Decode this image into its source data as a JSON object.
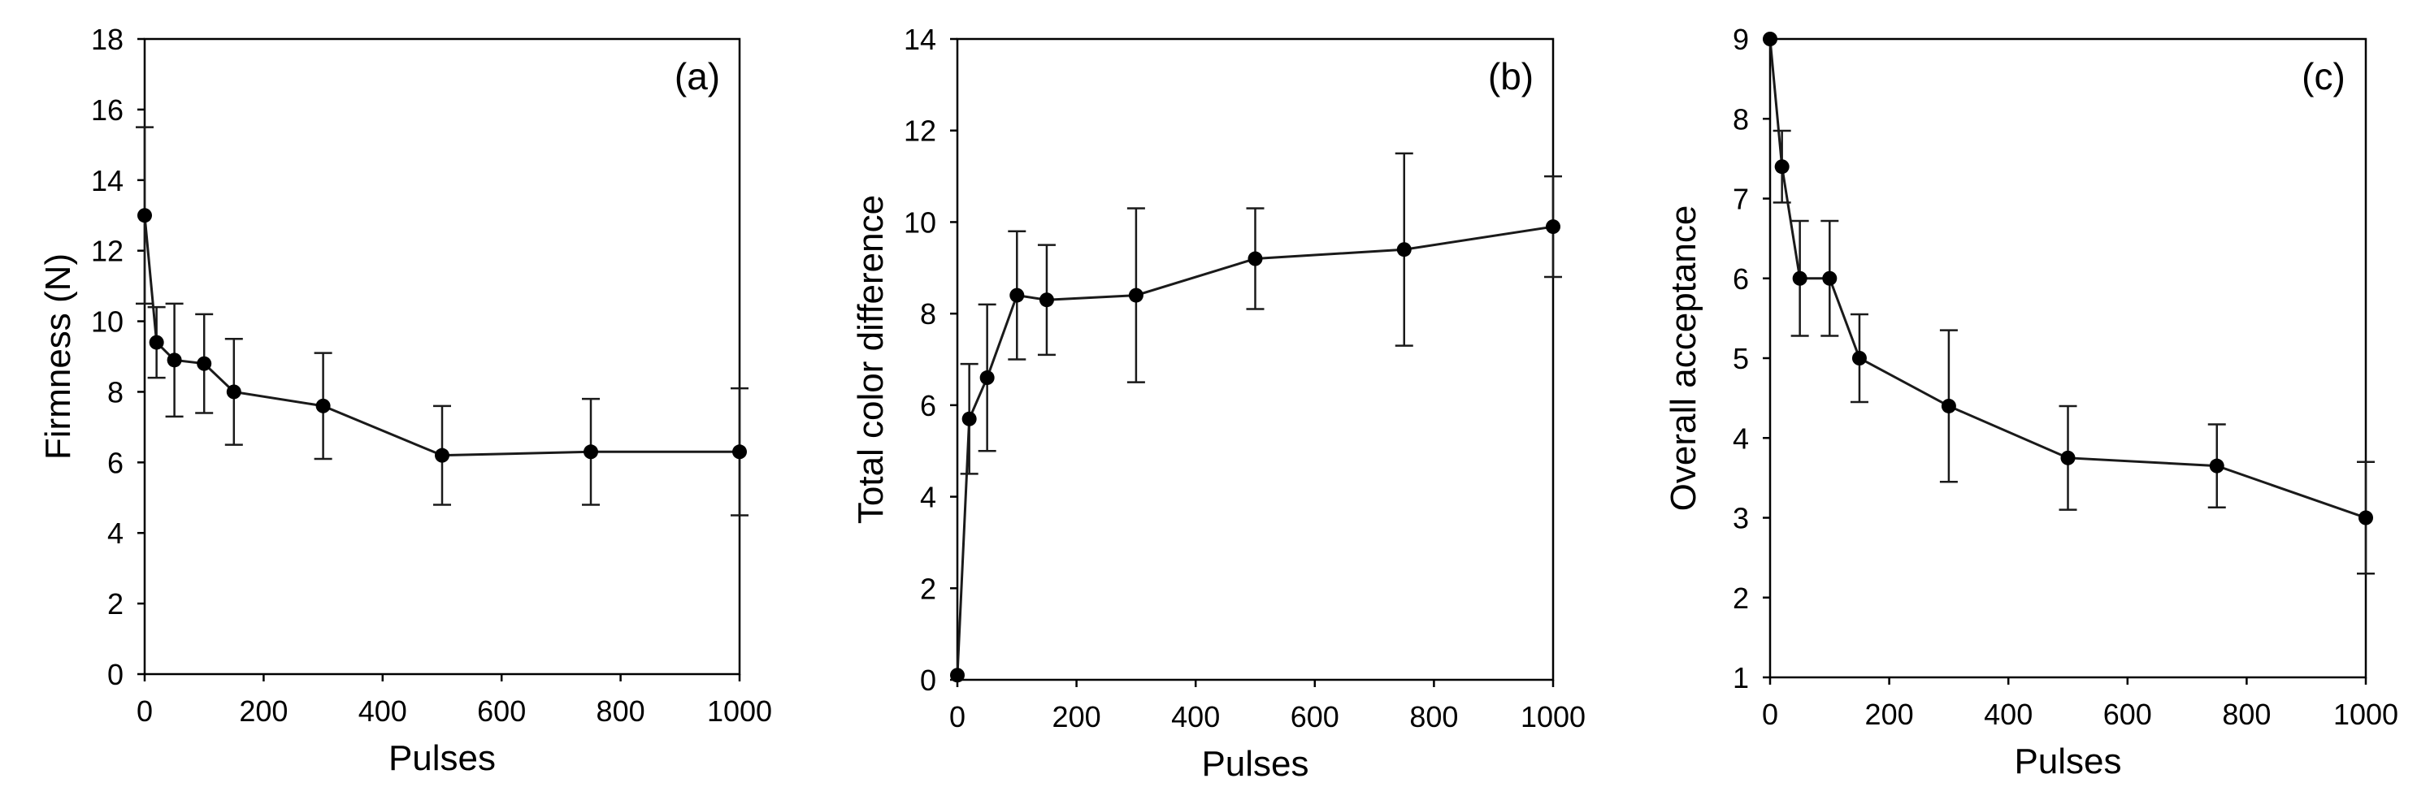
{
  "figure": {
    "colors": {
      "line": "#1a1a1a",
      "marker": "#000000",
      "frame": "#000000",
      "background": "#ffffff"
    }
  },
  "chart_data": [
    {
      "type": "line",
      "panel_label": "(a)",
      "title": "",
      "xlabel": "Pulses",
      "ylabel": "Firmness (N)",
      "xlim": [
        0,
        1000
      ],
      "ylim": [
        0,
        18
      ],
      "xticks": [
        0,
        200,
        400,
        600,
        800,
        1000
      ],
      "yticks": [
        0,
        2,
        4,
        6,
        8,
        10,
        12,
        14,
        16,
        18
      ],
      "grid": false,
      "series": [
        {
          "name": "Firmness",
          "x": [
            0,
            20,
            50,
            100,
            150,
            300,
            500,
            750,
            1000
          ],
          "y": [
            13.0,
            9.4,
            8.9,
            8.8,
            8.0,
            7.6,
            6.2,
            6.3,
            6.3
          ],
          "err": [
            2.5,
            1.0,
            1.6,
            1.4,
            1.5,
            1.5,
            1.4,
            1.5,
            1.8
          ]
        }
      ]
    },
    {
      "type": "line",
      "panel_label": "(b)",
      "title": "",
      "xlabel": "Pulses",
      "ylabel": "Total color difference",
      "xlim": [
        0,
        1000
      ],
      "ylim": [
        0,
        14
      ],
      "xticks": [
        0,
        200,
        400,
        600,
        800,
        1000
      ],
      "yticks": [
        0,
        2,
        4,
        6,
        8,
        10,
        12,
        14
      ],
      "grid": false,
      "series": [
        {
          "name": "Total color difference",
          "x": [
            0,
            20,
            50,
            100,
            150,
            300,
            500,
            750,
            1000
          ],
          "y": [
            0.1,
            5.7,
            6.6,
            8.4,
            8.3,
            8.4,
            9.2,
            9.4,
            9.9
          ],
          "err": [
            0.0,
            1.2,
            1.6,
            1.4,
            1.2,
            1.9,
            1.1,
            2.1,
            1.1
          ]
        }
      ]
    },
    {
      "type": "line",
      "panel_label": "(c)",
      "title": "",
      "xlabel": "Pulses",
      "ylabel": "Overall acceptance",
      "xlim": [
        0,
        1000
      ],
      "ylim": [
        1,
        9
      ],
      "xticks": [
        0,
        200,
        400,
        600,
        800,
        1000
      ],
      "yticks": [
        1,
        2,
        3,
        4,
        5,
        6,
        7,
        8,
        9
      ],
      "grid": false,
      "series": [
        {
          "name": "Overall acceptance",
          "x": [
            0,
            20,
            50,
            100,
            150,
            300,
            500,
            750,
            1000
          ],
          "y": [
            9.0,
            7.4,
            6.0,
            6.0,
            5.0,
            4.4,
            3.75,
            3.65,
            3.0
          ],
          "err": [
            0.0,
            0.45,
            0.72,
            0.72,
            0.55,
            0.95,
            0.65,
            0.52,
            0.7
          ]
        }
      ]
    }
  ]
}
